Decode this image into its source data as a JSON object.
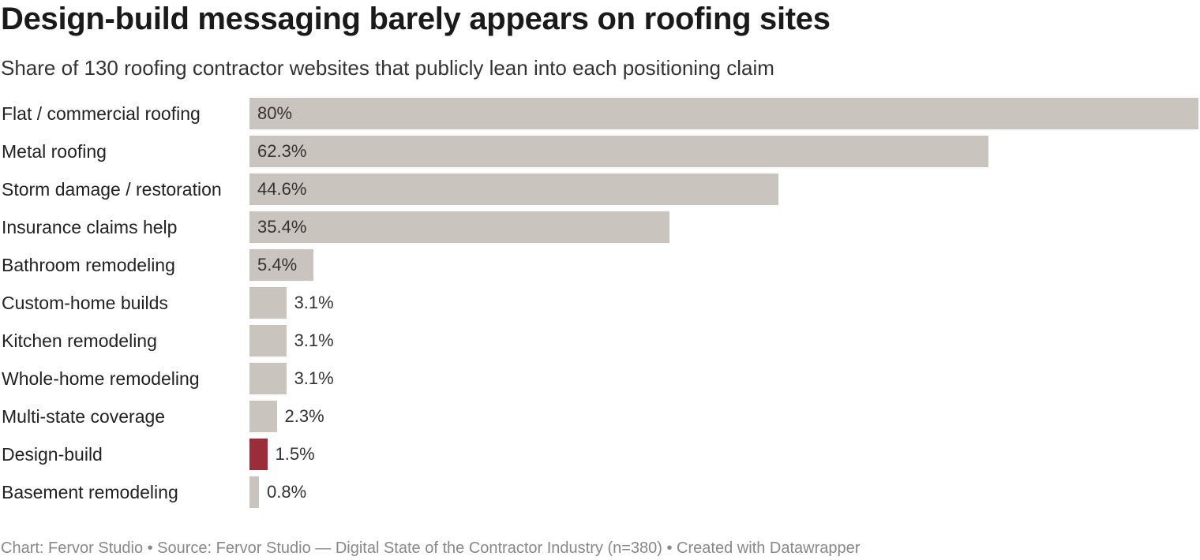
{
  "title": "Design-build messaging barely appears on roofing sites",
  "subtitle": "Share of 130 roofing contractor websites that publicly lean into each positioning claim",
  "footer": "Chart: Fervor Studio • Source: Fervor Studio — Digital State of the Contractor Industry (n=380) • Created with Datawrapper",
  "colors": {
    "default_bar": "#c9c5be",
    "highlight_bar": "#9b2c39"
  },
  "chart_data": {
    "type": "bar",
    "orientation": "horizontal",
    "unit": "%",
    "xlim": [
      0,
      80
    ],
    "grid": false,
    "legend": "none",
    "highlight": "Design-build",
    "categories": [
      "Flat / commercial roofing",
      "Metal roofing",
      "Storm damage / restoration",
      "Insurance claims help",
      "Bathroom remodeling",
      "Custom-home builds",
      "Kitchen remodeling",
      "Whole-home remodeling",
      "Multi-state coverage",
      "Design-build",
      "Basement remodeling"
    ],
    "values": [
      80,
      62.3,
      44.6,
      35.4,
      5.4,
      3.1,
      3.1,
      3.1,
      2.3,
      1.5,
      0.8
    ],
    "value_labels": [
      "80%",
      "62.3%",
      "44.6%",
      "35.4%",
      "5.4%",
      "3.1%",
      "3.1%",
      "3.1%",
      "2.3%",
      "1.5%",
      "0.8%"
    ]
  }
}
